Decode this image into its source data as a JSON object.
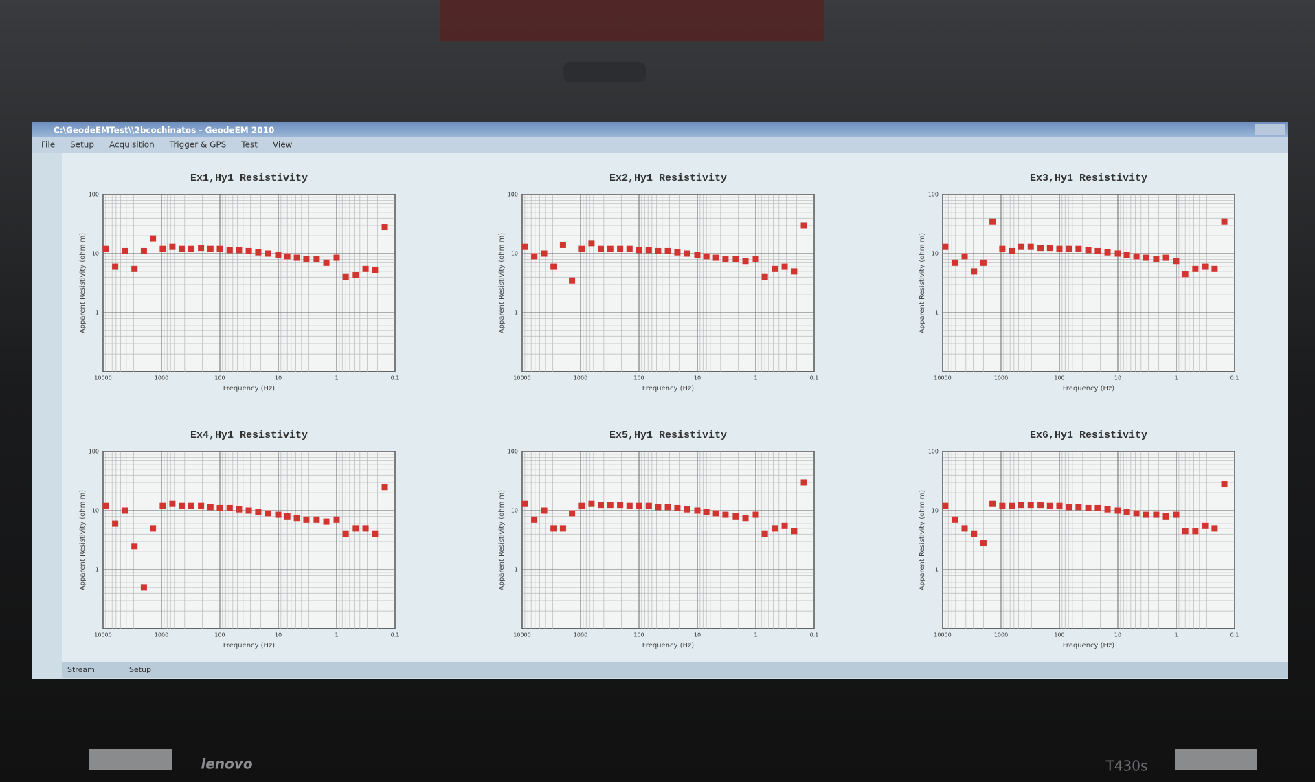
{
  "window": {
    "title": "C:\\GeodeEMTest\\\\2bcochinatos - GeodeEM 2010",
    "menu": [
      "File",
      "Setup",
      "Acquisition",
      "Trigger & GPS",
      "Test",
      "View"
    ],
    "status": [
      "Stream",
      "Setup"
    ]
  },
  "bezel": {
    "brand": "lenovo",
    "model": "T430s"
  },
  "chart_data": [
    {
      "type": "scatter",
      "title": "Ex1,Hy1 Resistivity",
      "x_label": "Frequency (Hz)",
      "y_label": "Apparent Resistivity (ohm m)",
      "x": [
        9000,
        6200,
        4200,
        2900,
        2000,
        1400,
        950,
        650,
        450,
        310,
        210,
        145,
        100,
        68,
        47,
        32,
        22,
        15,
        10,
        7,
        4.8,
        3.3,
        2.2,
        1.5,
        1,
        0.7,
        0.47,
        0.32,
        0.22,
        0.15
      ],
      "values": [
        12,
        6,
        11,
        5.5,
        11,
        18,
        12,
        13,
        12,
        12,
        12.5,
        12,
        12,
        11.5,
        11.5,
        11,
        10.5,
        10,
        9.5,
        9,
        8.5,
        8,
        8,
        7,
        8.5,
        4,
        4.3,
        5.5,
        5.2,
        28
      ],
      "color": "#d2342f",
      "xscale": "log",
      "yscale": "log",
      "xlim": [
        10000,
        0.1
      ],
      "ylim": [
        0.1,
        100
      ],
      "xticks": [
        10000,
        1000,
        100,
        10,
        1,
        0.1
      ],
      "yticks": [
        1,
        10,
        100
      ],
      "grid": true,
      "minor_grid": true
    },
    {
      "type": "scatter",
      "title": "Ex2,Hy1 Resistivity",
      "x_label": "Frequency (Hz)",
      "y_label": "Apparent Resistivity (ohm m)",
      "x": [
        9000,
        6200,
        4200,
        2900,
        2000,
        1400,
        950,
        650,
        450,
        310,
        210,
        145,
        100,
        68,
        47,
        32,
        22,
        15,
        10,
        7,
        4.8,
        3.3,
        2.2,
        1.5,
        1,
        0.7,
        0.47,
        0.32,
        0.22,
        0.15
      ],
      "values": [
        13,
        9,
        10,
        6,
        14,
        3.5,
        12,
        15,
        12,
        12,
        12,
        12,
        11.5,
        11.5,
        11,
        11,
        10.5,
        10,
        9.5,
        9,
        8.5,
        8,
        8,
        7.5,
        8,
        4,
        5.5,
        6,
        5,
        30
      ],
      "color": "#d2342f",
      "xscale": "log",
      "yscale": "log",
      "xlim": [
        10000,
        0.1
      ],
      "ylim": [
        0.1,
        100
      ],
      "xticks": [
        10000,
        1000,
        100,
        10,
        1,
        0.1
      ],
      "yticks": [
        1,
        10,
        100
      ],
      "grid": true,
      "minor_grid": true
    },
    {
      "type": "scatter",
      "title": "Ex3,Hy1 Resistivity",
      "x_label": "Frequency (Hz)",
      "y_label": "Apparent Resistivity (ohm m)",
      "x": [
        9000,
        6200,
        4200,
        2900,
        2000,
        1400,
        950,
        650,
        450,
        310,
        210,
        145,
        100,
        68,
        47,
        32,
        22,
        15,
        10,
        7,
        4.8,
        3.3,
        2.2,
        1.5,
        1,
        0.7,
        0.47,
        0.32,
        0.22,
        0.15
      ],
      "values": [
        13,
        7,
        9,
        5,
        7,
        35,
        12,
        11,
        13,
        13,
        12.5,
        12.5,
        12,
        12,
        12,
        11.5,
        11,
        10.5,
        10,
        9.5,
        9,
        8.5,
        8,
        8.5,
        7.5,
        4.5,
        5.5,
        6,
        5.5,
        35
      ],
      "color": "#d2342f",
      "xscale": "log",
      "yscale": "log",
      "xlim": [
        10000,
        0.1
      ],
      "ylim": [
        0.1,
        100
      ],
      "xticks": [
        10000,
        1000,
        100,
        10,
        1,
        0.1
      ],
      "yticks": [
        1,
        10,
        100
      ],
      "grid": true,
      "minor_grid": true
    },
    {
      "type": "scatter",
      "title": "Ex4,Hy1 Resistivity",
      "x_label": "Frequency (Hz)",
      "y_label": "Apparent Resistivity (ohm m)",
      "x": [
        9000,
        6200,
        4200,
        2900,
        2000,
        1400,
        950,
        650,
        450,
        310,
        210,
        145,
        100,
        68,
        47,
        32,
        22,
        15,
        10,
        7,
        4.8,
        3.3,
        2.2,
        1.5,
        1,
        0.7,
        0.47,
        0.32,
        0.22,
        0.15
      ],
      "values": [
        12,
        6,
        10,
        2.5,
        0.5,
        5,
        12,
        13,
        12,
        12,
        12,
        11.5,
        11,
        11,
        10.5,
        10,
        9.5,
        9,
        8.5,
        8,
        7.5,
        7,
        7,
        6.5,
        7,
        4,
        5,
        5,
        4,
        25
      ],
      "color": "#d2342f",
      "xscale": "log",
      "yscale": "log",
      "xlim": [
        10000,
        0.1
      ],
      "ylim": [
        0.1,
        100
      ],
      "xticks": [
        10000,
        1000,
        100,
        10,
        1,
        0.1
      ],
      "yticks": [
        1,
        10,
        100
      ],
      "grid": true,
      "minor_grid": true
    },
    {
      "type": "scatter",
      "title": "Ex5,Hy1 Resistivity",
      "x_label": "Frequency (Hz)",
      "y_label": "Apparent Resistivity (ohm m)",
      "x": [
        9000,
        6200,
        4200,
        2900,
        2000,
        1400,
        950,
        650,
        450,
        310,
        210,
        145,
        100,
        68,
        47,
        32,
        22,
        15,
        10,
        7,
        4.8,
        3.3,
        2.2,
        1.5,
        1,
        0.7,
        0.47,
        0.32,
        0.22,
        0.15
      ],
      "values": [
        13,
        7,
        10,
        5,
        5,
        9,
        12,
        13,
        12.5,
        12.5,
        12.5,
        12,
        12,
        12,
        11.5,
        11.5,
        11,
        10.5,
        10,
        9.5,
        9,
        8.5,
        8,
        7.5,
        8.5,
        4,
        5,
        5.5,
        4.5,
        30
      ],
      "color": "#d2342f",
      "xscale": "log",
      "yscale": "log",
      "xlim": [
        10000,
        0.1
      ],
      "ylim": [
        0.1,
        100
      ],
      "xticks": [
        10000,
        1000,
        100,
        10,
        1,
        0.1
      ],
      "yticks": [
        1,
        10,
        100
      ],
      "grid": true,
      "minor_grid": true
    },
    {
      "type": "scatter",
      "title": "Ex6,Hy1 Resistivity",
      "x_label": "Frequency (Hz)",
      "y_label": "Apparent Resistivity (ohm m)",
      "x": [
        9000,
        6200,
        4200,
        2900,
        2000,
        1400,
        950,
        650,
        450,
        310,
        210,
        145,
        100,
        68,
        47,
        32,
        22,
        15,
        10,
        7,
        4.8,
        3.3,
        2.2,
        1.5,
        1,
        0.7,
        0.47,
        0.32,
        0.22,
        0.15
      ],
      "values": [
        12,
        7,
        5,
        4,
        2.8,
        13,
        12,
        12,
        12.5,
        12.5,
        12.5,
        12,
        12,
        11.5,
        11.5,
        11,
        11,
        10.5,
        10,
        9.5,
        9,
        8.5,
        8.5,
        8,
        8.5,
        4.5,
        4.5,
        5.5,
        5,
        28
      ],
      "color": "#d2342f",
      "xscale": "log",
      "yscale": "log",
      "xlim": [
        10000,
        0.1
      ],
      "ylim": [
        0.1,
        100
      ],
      "xticks": [
        10000,
        1000,
        100,
        10,
        1,
        0.1
      ],
      "yticks": [
        1,
        10,
        100
      ],
      "grid": true,
      "minor_grid": true
    }
  ]
}
